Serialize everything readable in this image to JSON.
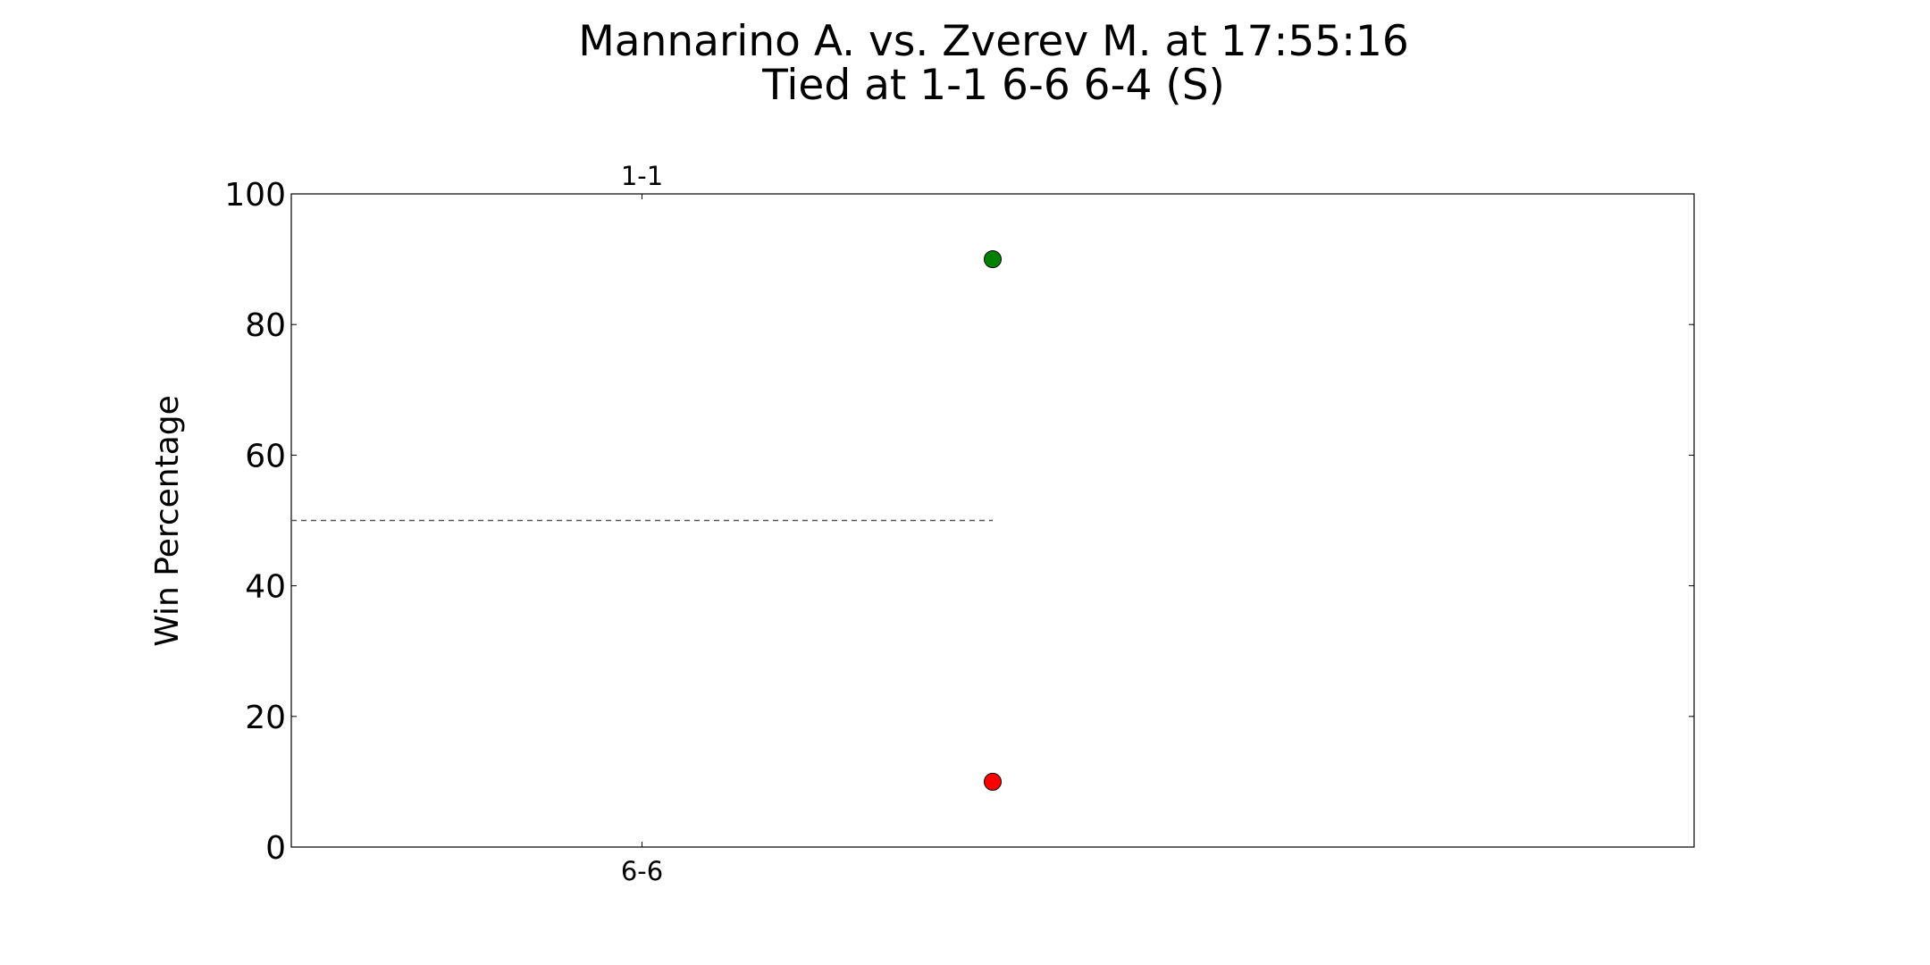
{
  "chart_data": {
    "type": "scatter",
    "title": "Mannarino A. vs. Zverev M. at 17:55:16",
    "subtitle": "Tied at 1-1 6-6 6-4 (S)",
    "xlabel": "",
    "ylabel": "Win Percentage",
    "ylim": [
      0,
      100
    ],
    "xlim": [
      0,
      4
    ],
    "yticks": [
      0,
      20,
      40,
      60,
      80,
      100
    ],
    "ytick_labels": [
      "0",
      "20",
      "40",
      "60",
      "80",
      "100"
    ],
    "top_xticks": [
      {
        "x": 1,
        "label": "1-1"
      }
    ],
    "bottom_xticks": [
      {
        "x": 1,
        "label": "6-6"
      }
    ],
    "grid": false,
    "reference_line": {
      "y": 50,
      "x_start": 0,
      "x_end": 2,
      "style": "dashed",
      "color": "#555555"
    },
    "series": [
      {
        "color": "#008000",
        "points": [
          {
            "x": 2,
            "y": 90
          }
        ]
      },
      {
        "color": "#ff0000",
        "points": [
          {
            "x": 2,
            "y": 10
          }
        ]
      }
    ]
  }
}
